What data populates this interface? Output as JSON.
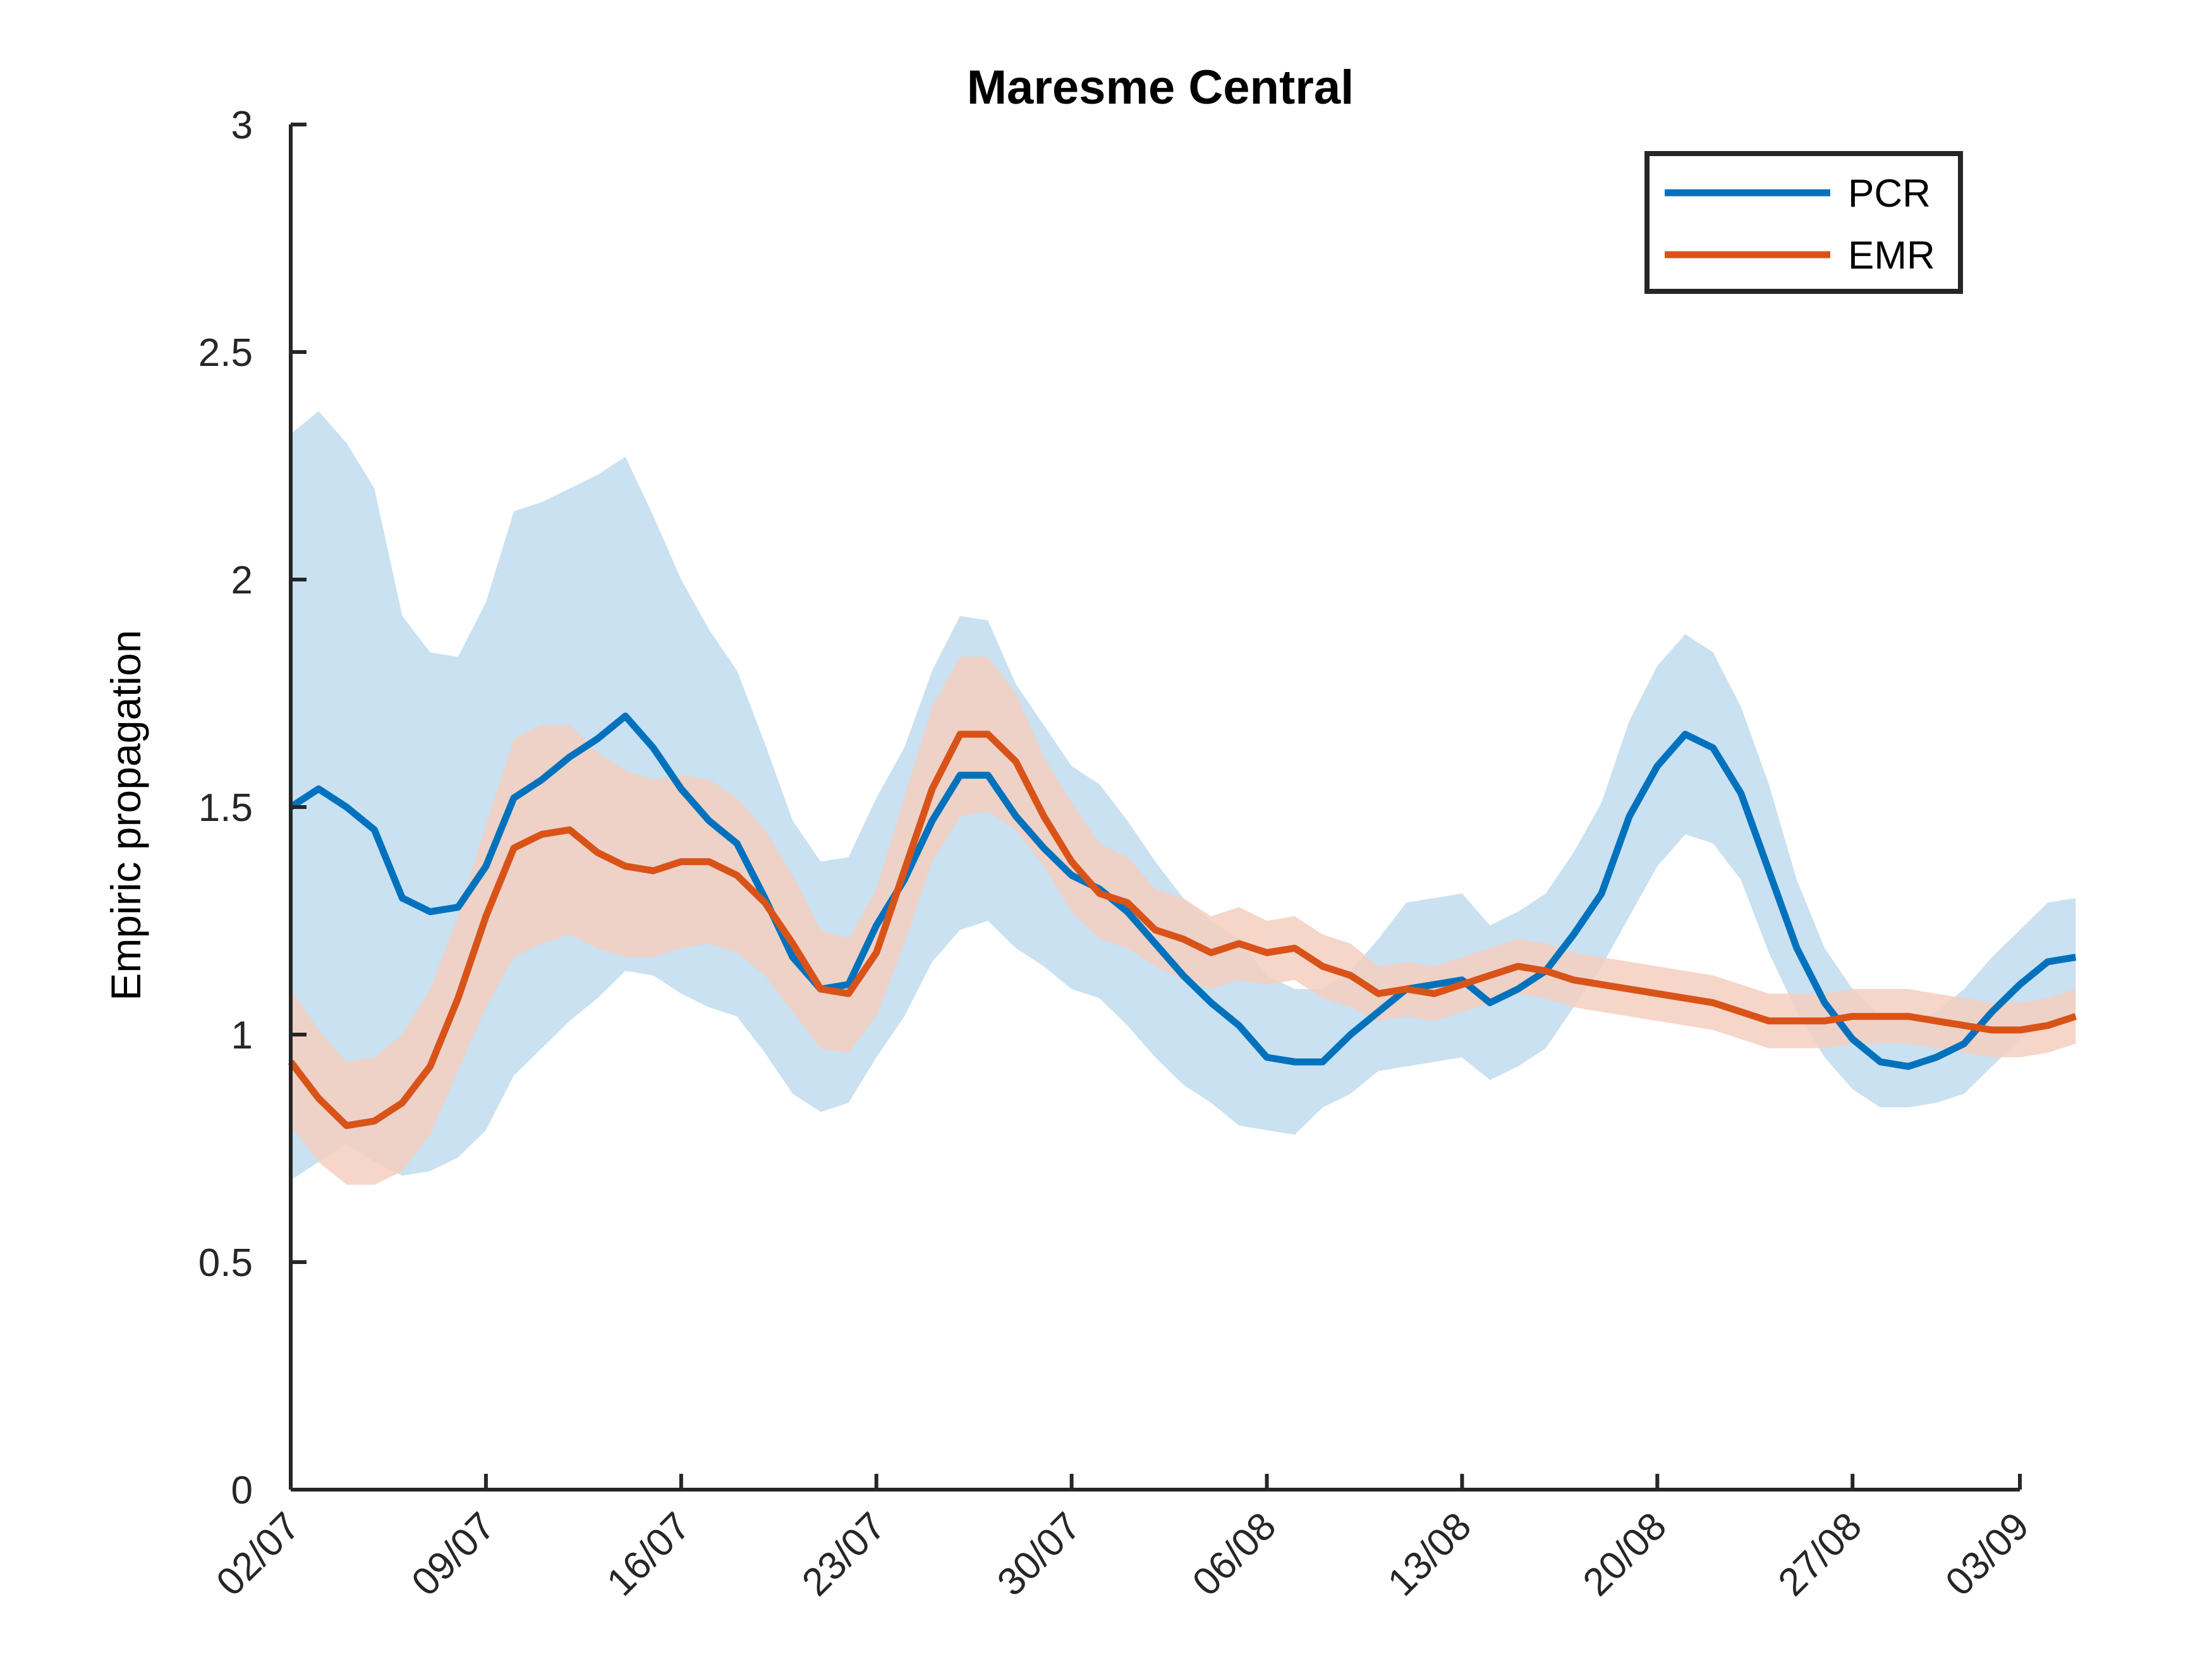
{
  "chart_data": {
    "type": "line",
    "title": "Maresme Central",
    "xlabel": "",
    "ylabel": "Empiric propagation",
    "x_ticks": [
      "02/07",
      "09/07",
      "16/07",
      "23/07",
      "30/07",
      "06/08",
      "13/08",
      "20/08",
      "27/08",
      "03/09"
    ],
    "x_range": [
      "02/07",
      "03/09"
    ],
    "ylim": [
      0,
      3
    ],
    "y_ticks": [
      "0",
      "0.5",
      "1",
      "1.5",
      "2",
      "2.5",
      "3"
    ],
    "grid": false,
    "legend_position": "top-right",
    "series": [
      {
        "name": "PCR",
        "color": "#0072BD",
        "band_color": "#BFDCEE",
        "values": [
          1.5,
          1.54,
          1.5,
          1.45,
          1.3,
          1.27,
          1.28,
          1.37,
          1.52,
          1.56,
          1.61,
          1.65,
          1.7,
          1.63,
          1.54,
          1.47,
          1.42,
          1.3,
          1.17,
          1.1,
          1.11,
          1.24,
          1.34,
          1.47,
          1.57,
          1.57,
          1.48,
          1.41,
          1.35,
          1.32,
          1.27,
          1.2,
          1.13,
          1.07,
          1.02,
          0.95,
          0.94,
          0.94,
          1.0,
          1.05,
          1.1,
          1.11,
          1.12,
          1.07,
          1.1,
          1.14,
          1.22,
          1.31,
          1.48,
          1.59,
          1.66,
          1.63,
          1.53,
          1.36,
          1.19,
          1.07,
          0.99,
          0.94,
          0.93,
          0.95,
          0.98,
          1.05,
          1.11,
          1.16,
          1.17
        ],
        "lower": [
          0.68,
          0.72,
          0.76,
          0.72,
          0.69,
          0.7,
          0.73,
          0.79,
          0.91,
          0.97,
          1.03,
          1.08,
          1.14,
          1.13,
          1.09,
          1.06,
          1.04,
          0.96,
          0.87,
          0.83,
          0.85,
          0.95,
          1.04,
          1.16,
          1.23,
          1.25,
          1.19,
          1.15,
          1.1,
          1.08,
          1.02,
          0.95,
          0.89,
          0.85,
          0.8,
          0.79,
          0.78,
          0.84,
          0.87,
          0.92,
          0.93,
          0.94,
          0.95,
          0.9,
          0.93,
          0.97,
          1.06,
          1.15,
          1.26,
          1.37,
          1.44,
          1.42,
          1.34,
          1.18,
          1.05,
          0.95,
          0.88,
          0.84,
          0.84,
          0.85,
          0.87,
          0.93,
          0.99,
          1.03,
          1.04
        ],
        "upper": [
          2.32,
          2.37,
          2.3,
          2.2,
          1.92,
          1.84,
          1.83,
          1.95,
          2.15,
          2.17,
          2.2,
          2.23,
          2.27,
          2.14,
          2.0,
          1.89,
          1.8,
          1.64,
          1.47,
          1.38,
          1.39,
          1.52,
          1.63,
          1.8,
          1.92,
          1.91,
          1.77,
          1.68,
          1.59,
          1.55,
          1.47,
          1.38,
          1.3,
          1.25,
          1.21,
          1.13,
          1.1,
          1.1,
          1.14,
          1.21,
          1.29,
          1.3,
          1.31,
          1.24,
          1.27,
          1.31,
          1.4,
          1.51,
          1.69,
          1.81,
          1.88,
          1.84,
          1.72,
          1.55,
          1.34,
          1.19,
          1.1,
          1.04,
          1.03,
          1.05,
          1.1,
          1.17,
          1.23,
          1.29,
          1.3
        ]
      },
      {
        "name": "EMR",
        "color": "#D95319",
        "band_color": "#F5CFC0",
        "values": [
          0.94,
          0.86,
          0.8,
          0.81,
          0.85,
          0.93,
          1.08,
          1.26,
          1.41,
          1.44,
          1.45,
          1.4,
          1.37,
          1.36,
          1.38,
          1.38,
          1.35,
          1.29,
          1.2,
          1.1,
          1.09,
          1.18,
          1.36,
          1.54,
          1.66,
          1.66,
          1.6,
          1.48,
          1.38,
          1.31,
          1.29,
          1.23,
          1.21,
          1.18,
          1.2,
          1.18,
          1.19,
          1.15,
          1.13,
          1.09,
          1.1,
          1.09,
          1.11,
          1.13,
          1.15,
          1.14,
          1.12,
          1.11,
          1.1,
          1.09,
          1.08,
          1.07,
          1.05,
          1.03,
          1.03,
          1.03,
          1.04,
          1.04,
          1.04,
          1.03,
          1.02,
          1.01,
          1.01,
          1.02,
          1.04
        ],
        "lower": [
          0.8,
          0.72,
          0.67,
          0.67,
          0.7,
          0.78,
          0.92,
          1.06,
          1.17,
          1.2,
          1.22,
          1.19,
          1.17,
          1.17,
          1.19,
          1.2,
          1.18,
          1.13,
          1.05,
          0.97,
          0.96,
          1.04,
          1.2,
          1.38,
          1.48,
          1.49,
          1.45,
          1.37,
          1.27,
          1.21,
          1.19,
          1.15,
          1.12,
          1.1,
          1.12,
          1.11,
          1.12,
          1.08,
          1.06,
          1.03,
          1.04,
          1.03,
          1.05,
          1.07,
          1.09,
          1.08,
          1.06,
          1.05,
          1.04,
          1.03,
          1.02,
          1.01,
          0.99,
          0.97,
          0.97,
          0.97,
          0.98,
          0.98,
          0.98,
          0.97,
          0.96,
          0.95,
          0.95,
          0.96,
          0.98
        ],
        "upper": [
          1.1,
          1.01,
          0.94,
          0.95,
          1.0,
          1.1,
          1.26,
          1.46,
          1.65,
          1.68,
          1.68,
          1.62,
          1.58,
          1.56,
          1.57,
          1.56,
          1.52,
          1.45,
          1.35,
          1.23,
          1.21,
          1.32,
          1.52,
          1.72,
          1.83,
          1.83,
          1.75,
          1.61,
          1.51,
          1.42,
          1.39,
          1.32,
          1.3,
          1.26,
          1.28,
          1.25,
          1.26,
          1.22,
          1.2,
          1.15,
          1.16,
          1.15,
          1.17,
          1.19,
          1.21,
          1.2,
          1.18,
          1.17,
          1.16,
          1.15,
          1.14,
          1.13,
          1.11,
          1.09,
          1.09,
          1.09,
          1.1,
          1.1,
          1.1,
          1.09,
          1.08,
          1.07,
          1.07,
          1.08,
          1.1
        ]
      }
    ]
  }
}
